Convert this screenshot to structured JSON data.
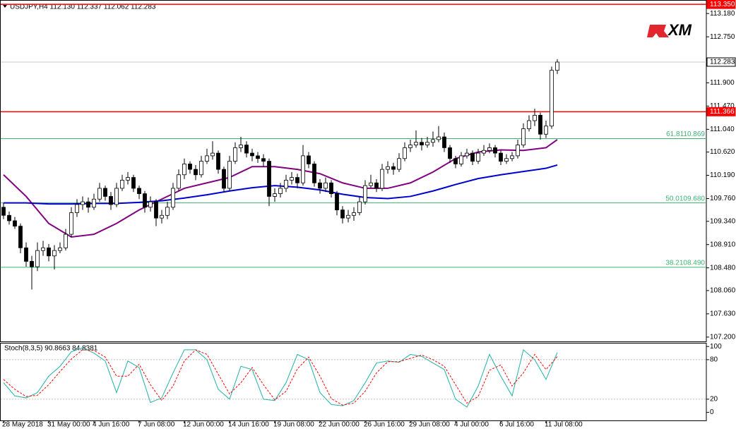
{
  "chart_data": {
    "type": "candlestick",
    "header": "USDJPY,H4  112.130 112.337 112.062 112.283",
    "stoch_label": "Stoch(8,3,5) 90.8663 84.8381",
    "logo": "XM",
    "categories": [
      "28 May 2018",
      null,
      null,
      null,
      null,
      null,
      null,
      null,
      "31 May 00:00",
      null,
      null,
      null,
      null,
      null,
      null,
      null,
      "4 Jun 16:00",
      null,
      null,
      null,
      null,
      null,
      null,
      null,
      "7 Jun 08:00",
      null,
      null,
      null,
      null,
      null,
      null,
      null,
      "12 Jun 00:00",
      null,
      null,
      null,
      null,
      null,
      null,
      null,
      "14 Jun 16:00",
      null,
      null,
      null,
      null,
      null,
      null,
      null,
      "19 Jun 08:00",
      null,
      null,
      null,
      null,
      null,
      null,
      null,
      "22 Jun 00:00",
      null,
      null,
      null,
      null,
      null,
      null,
      null,
      "26 Jun 16:00",
      null,
      null,
      null,
      null,
      null,
      null,
      null,
      "29 Jun 08:00",
      null,
      null,
      null,
      null,
      null,
      null,
      null,
      "4 Jul 00:00",
      null,
      null,
      null,
      null,
      null,
      null,
      null,
      "6 Jul 16:00",
      null,
      null,
      null,
      null,
      null,
      null,
      null,
      "11 Jul 08:00",
      null,
      null
    ],
    "ohlc": [
      [
        109.6,
        109.68,
        109.38,
        109.45
      ],
      [
        109.45,
        109.52,
        109.28,
        109.35
      ],
      [
        109.35,
        109.42,
        109.2,
        109.25
      ],
      [
        109.25,
        109.3,
        108.75,
        108.85
      ],
      [
        108.85,
        108.95,
        108.5,
        108.6
      ],
      [
        108.6,
        108.7,
        108.08,
        108.5
      ],
      [
        108.5,
        108.95,
        108.42,
        108.8
      ],
      [
        108.8,
        108.98,
        108.7,
        108.85
      ],
      [
        108.85,
        108.92,
        108.6,
        108.7
      ],
      [
        108.7,
        108.9,
        108.45,
        108.8
      ],
      [
        108.8,
        108.95,
        108.75,
        108.85
      ],
      [
        108.85,
        109.2,
        108.8,
        109.1
      ],
      [
        109.1,
        109.6,
        109.05,
        109.5
      ],
      [
        109.5,
        109.75,
        109.42,
        109.65
      ],
      [
        109.65,
        109.8,
        109.55,
        109.7
      ],
      [
        109.7,
        109.78,
        109.5,
        109.6
      ],
      [
        109.6,
        109.85,
        109.55,
        109.75
      ],
      [
        109.75,
        110.05,
        109.7,
        109.95
      ],
      [
        109.95,
        110.0,
        109.72,
        109.8
      ],
      [
        109.8,
        109.88,
        109.55,
        109.65
      ],
      [
        109.65,
        110.05,
        109.6,
        109.95
      ],
      [
        109.95,
        110.2,
        109.9,
        110.1
      ],
      [
        110.1,
        110.25,
        110.02,
        110.15
      ],
      [
        110.15,
        110.2,
        109.88,
        109.95
      ],
      [
        109.95,
        110.0,
        109.75,
        109.85
      ],
      [
        109.85,
        109.9,
        109.5,
        109.6
      ],
      [
        109.6,
        109.8,
        109.52,
        109.7
      ],
      [
        109.7,
        109.75,
        109.25,
        109.4
      ],
      [
        109.4,
        109.55,
        109.3,
        109.45
      ],
      [
        109.45,
        109.7,
        109.38,
        109.6
      ],
      [
        109.6,
        110.05,
        109.55,
        109.95
      ],
      [
        109.95,
        110.3,
        109.9,
        110.2
      ],
      [
        110.2,
        110.5,
        110.12,
        110.4
      ],
      [
        110.4,
        110.45,
        110.22,
        110.3
      ],
      [
        110.3,
        110.38,
        110.1,
        110.2
      ],
      [
        110.2,
        110.55,
        110.15,
        110.45
      ],
      [
        110.45,
        110.68,
        110.4,
        110.55
      ],
      [
        110.55,
        110.82,
        110.48,
        110.6
      ],
      [
        110.6,
        110.65,
        110.22,
        110.3
      ],
      [
        110.3,
        110.35,
        109.88,
        109.95
      ],
      [
        109.95,
        110.55,
        109.9,
        110.45
      ],
      [
        110.45,
        110.8,
        110.4,
        110.7
      ],
      [
        110.7,
        110.9,
        110.62,
        110.75
      ],
      [
        110.75,
        110.82,
        110.52,
        110.6
      ],
      [
        110.6,
        110.68,
        110.45,
        110.55
      ],
      [
        110.55,
        110.62,
        110.42,
        110.5
      ],
      [
        110.5,
        110.58,
        110.35,
        110.45
      ],
      [
        110.45,
        110.5,
        109.62,
        109.8
      ],
      [
        109.8,
        109.95,
        109.7,
        109.85
      ],
      [
        109.85,
        110.05,
        109.78,
        109.95
      ],
      [
        109.95,
        110.2,
        109.88,
        110.1
      ],
      [
        110.1,
        110.25,
        110.02,
        110.15
      ],
      [
        110.15,
        110.22,
        109.95,
        110.05
      ],
      [
        110.05,
        110.75,
        110.0,
        110.55
      ],
      [
        110.55,
        110.62,
        110.32,
        110.4
      ],
      [
        110.4,
        110.45,
        109.98,
        110.05
      ],
      [
        110.05,
        110.12,
        109.85,
        109.95
      ],
      [
        109.95,
        110.15,
        109.88,
        110.05
      ],
      [
        110.05,
        110.1,
        109.78,
        109.85
      ],
      [
        109.85,
        109.9,
        109.45,
        109.55
      ],
      [
        109.55,
        109.62,
        109.3,
        109.4
      ],
      [
        109.4,
        109.55,
        109.32,
        109.45
      ],
      [
        109.45,
        109.6,
        109.35,
        109.5
      ],
      [
        109.5,
        109.8,
        109.45,
        109.7
      ],
      [
        109.7,
        110.1,
        109.65,
        110.0
      ],
      [
        110.0,
        110.2,
        109.95,
        110.05
      ],
      [
        110.05,
        110.12,
        109.88,
        109.95
      ],
      [
        109.95,
        110.4,
        109.9,
        110.3
      ],
      [
        110.3,
        110.45,
        110.22,
        110.35
      ],
      [
        110.35,
        110.42,
        110.2,
        110.3
      ],
      [
        110.3,
        110.6,
        110.25,
        110.5
      ],
      [
        110.5,
        110.8,
        110.45,
        110.7
      ],
      [
        110.7,
        110.85,
        110.62,
        110.75
      ],
      [
        110.75,
        111.02,
        110.7,
        110.8
      ],
      [
        110.8,
        110.88,
        110.65,
        110.75
      ],
      [
        110.75,
        110.9,
        110.7,
        110.8
      ],
      [
        110.8,
        111.0,
        110.72,
        110.85
      ],
      [
        110.85,
        111.1,
        110.8,
        110.9
      ],
      [
        110.9,
        110.98,
        110.62,
        110.7
      ],
      [
        110.7,
        110.75,
        110.42,
        110.5
      ],
      [
        110.5,
        110.55,
        110.32,
        110.4
      ],
      [
        110.4,
        110.62,
        110.35,
        110.55
      ],
      [
        110.55,
        110.68,
        110.5,
        110.6
      ],
      [
        110.6,
        110.65,
        110.38,
        110.45
      ],
      [
        110.45,
        110.68,
        110.4,
        110.6
      ],
      [
        110.6,
        110.75,
        110.55,
        110.65
      ],
      [
        110.65,
        110.78,
        110.6,
        110.7
      ],
      [
        110.7,
        110.75,
        110.52,
        110.6
      ],
      [
        110.6,
        110.65,
        110.38,
        110.45
      ],
      [
        110.45,
        110.58,
        110.4,
        110.5
      ],
      [
        110.5,
        110.62,
        110.45,
        110.55
      ],
      [
        110.55,
        110.85,
        110.5,
        110.75
      ],
      [
        110.75,
        111.15,
        110.7,
        111.05
      ],
      [
        111.05,
        111.3,
        111.0,
        111.2
      ],
      [
        111.2,
        111.42,
        111.1,
        111.3
      ],
      [
        111.3,
        111.35,
        110.85,
        110.95
      ],
      [
        110.95,
        111.2,
        110.88,
        111.1
      ],
      [
        111.1,
        112.2,
        111.05,
        112.13
      ],
      [
        112.13,
        112.337,
        112.062,
        112.283
      ]
    ],
    "ylim": [
      107.12,
      113.43
    ],
    "yticks": [
      {
        "value": 113.18,
        "label": "113.180"
      },
      {
        "value": 112.75,
        "label": "112.750"
      },
      {
        "value": 111.9,
        "label": "111.900"
      },
      {
        "value": 111.47,
        "label": "111.470"
      },
      {
        "value": 111.04,
        "label": "111.040"
      },
      {
        "value": 110.62,
        "label": "110.620"
      },
      {
        "value": 110.19,
        "label": "110.190"
      },
      {
        "value": 109.76,
        "label": "109.760"
      },
      {
        "value": 109.34,
        "label": "109.340"
      },
      {
        "value": 108.91,
        "label": "108.910"
      },
      {
        "value": 108.48,
        "label": "108.480"
      },
      {
        "value": 108.06,
        "label": "108.060"
      },
      {
        "value": 107.63,
        "label": "107.630"
      },
      {
        "value": 107.2,
        "label": "107.200"
      }
    ],
    "levels": [
      {
        "value": 113.35,
        "label": "113.350",
        "color": "#ff0000",
        "box": "#ff0000"
      },
      {
        "value": 112.283,
        "label": "112.283",
        "color": "#c8c8c8",
        "box": "#ffffff"
      },
      {
        "value": 111.366,
        "label": "111.366",
        "color": "#ff0000",
        "box": "#ff0000"
      },
      {
        "value": 110.869,
        "text": "61.8110.869",
        "color": "#3cb371"
      },
      {
        "value": 109.68,
        "text": "50.0109.680",
        "color": "#3cb371"
      },
      {
        "value": 108.49,
        "text": "38.2108.490",
        "color": "#3cb371"
      }
    ],
    "overlays": [
      {
        "color": "#800080",
        "x": [
          0,
          4,
          8,
          12,
          16,
          20,
          24,
          28,
          32,
          36,
          40,
          44,
          48,
          52,
          56,
          60,
          64,
          68,
          72,
          76,
          80,
          84,
          88,
          92,
          96,
          98
        ],
        "values": [
          110.2,
          109.8,
          109.3,
          109.05,
          109.1,
          109.3,
          109.55,
          109.75,
          109.95,
          110.05,
          110.15,
          110.35,
          110.35,
          110.3,
          110.22,
          110.05,
          109.95,
          109.95,
          110.05,
          110.25,
          110.5,
          110.62,
          110.66,
          110.65,
          110.7,
          110.85
        ]
      },
      {
        "color": "#0000cd",
        "x": [
          0,
          4,
          8,
          12,
          16,
          20,
          24,
          28,
          32,
          36,
          40,
          44,
          48,
          52,
          56,
          60,
          64,
          68,
          72,
          76,
          80,
          84,
          88,
          92,
          96,
          98
        ],
        "values": [
          109.68,
          109.68,
          109.66,
          109.66,
          109.67,
          109.67,
          109.69,
          109.72,
          109.77,
          109.83,
          109.9,
          109.96,
          110.0,
          109.97,
          109.92,
          109.84,
          109.78,
          109.76,
          109.8,
          109.9,
          110.02,
          110.13,
          110.2,
          110.26,
          110.32,
          110.38
        ]
      }
    ],
    "stoch": {
      "ylim": [
        -13.3,
        105.6
      ],
      "yticks": [
        100,
        80,
        20,
        0
      ],
      "levels": [
        80,
        20
      ],
      "series": [
        {
          "color": "#20b2aa",
          "style": "solid",
          "x": [
            0,
            2,
            4,
            6,
            8,
            10,
            12,
            14,
            16,
            18,
            20,
            22,
            24,
            26,
            28,
            30,
            32,
            34,
            36,
            38,
            40,
            42,
            44,
            46,
            48,
            50,
            52,
            54,
            56,
            58,
            60,
            62,
            64,
            66,
            68,
            70,
            72,
            74,
            76,
            78,
            80,
            82,
            84,
            86,
            88,
            90,
            92,
            94,
            96,
            98
          ],
          "values": [
            45,
            25,
            22,
            30,
            55,
            70,
            92,
            98,
            90,
            78,
            30,
            78,
            68,
            15,
            22,
            60,
            95,
            95,
            80,
            35,
            20,
            70,
            65,
            20,
            18,
            45,
            88,
            80,
            30,
            12,
            10,
            18,
            45,
            75,
            78,
            76,
            88,
            85,
            75,
            65,
            20,
            8,
            40,
            88,
            55,
            25,
            95,
            80,
            50,
            90.8663
          ]
        },
        {
          "color": "#ff0000",
          "style": "dashed",
          "x": [
            0,
            2,
            4,
            6,
            8,
            10,
            12,
            14,
            16,
            18,
            20,
            22,
            24,
            26,
            28,
            30,
            32,
            34,
            36,
            38,
            40,
            42,
            44,
            46,
            48,
            50,
            52,
            54,
            56,
            58,
            60,
            62,
            64,
            66,
            68,
            70,
            72,
            74,
            76,
            78,
            80,
            82,
            84,
            86,
            88,
            90,
            92,
            94,
            96,
            98
          ],
          "values": [
            50,
            35,
            24,
            26,
            42,
            62,
            81,
            95,
            94,
            84,
            55,
            55,
            73,
            42,
            18,
            40,
            78,
            95,
            88,
            58,
            28,
            45,
            68,
            42,
            19,
            32,
            66,
            84,
            55,
            21,
            11,
            14,
            32,
            60,
            77,
            77,
            82,
            87,
            80,
            70,
            42,
            14,
            24,
            64,
            72,
            40,
            60,
            88,
            65,
            84.8381
          ]
        }
      ]
    }
  }
}
